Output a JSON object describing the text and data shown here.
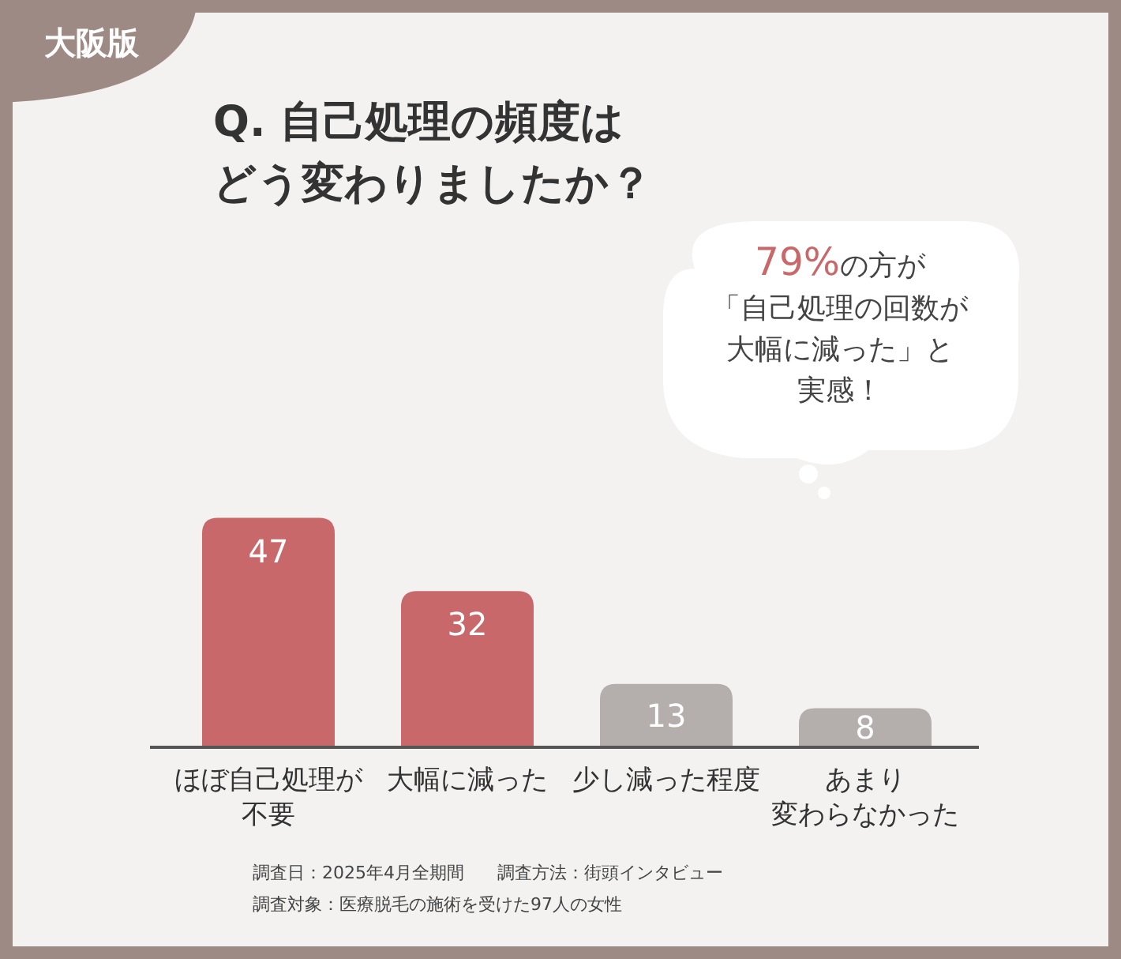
{
  "chart_data": {
    "type": "bar",
    "title": "Q. 自己処理の頻度はどう変わりましたか？",
    "categories": [
      "ほぼ自己処理が不要",
      "大幅に減った",
      "少し減った程度",
      "あまり変わらなかった"
    ],
    "values": [
      47,
      32,
      13,
      8
    ],
    "colors": [
      "#c8686a",
      "#c8686a",
      "#b4aeac",
      "#b4aeac"
    ],
    "data_labels": true,
    "annotations": [
      "大阪版",
      "**79%**の方が「自己処理の回数が大幅に減った」と実感！",
      "調査日：2025年4月全期間",
      "調査方法：街頭インタビュー",
      "調査対象：医療脱毛の施術を受けた97人の女性"
    ]
  }
}
